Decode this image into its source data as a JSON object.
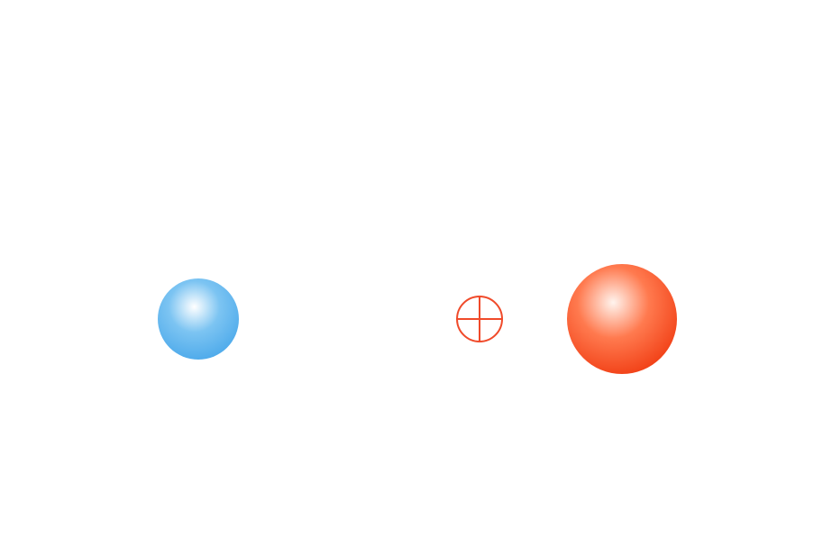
{
  "diagram": {
    "bodies": [
      {
        "id": "small-body",
        "color": "#7cc4f2",
        "highlight": "#ffffff",
        "shade": "#4aa8ea"
      },
      {
        "id": "large-body",
        "color": "#ff5a2a",
        "highlight": "#fff4ee",
        "shade": "#f03a10"
      }
    ],
    "center_of_mass_marker": {
      "icon": "crosshair-circle-icon",
      "color": "#f04a2a"
    }
  }
}
